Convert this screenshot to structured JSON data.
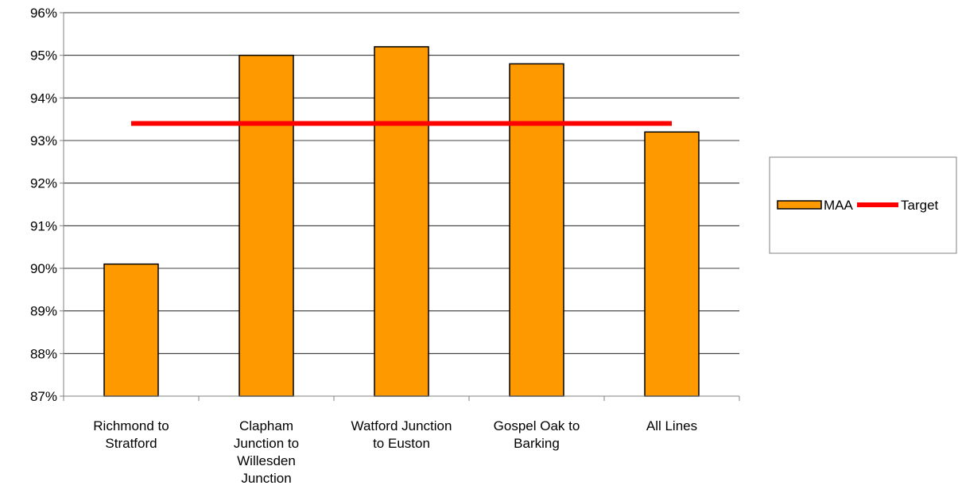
{
  "chart_data": {
    "type": "bar",
    "categories": [
      [
        "Richmond to",
        "Stratford"
      ],
      [
        "Clapham",
        "Junction to",
        "Willesden",
        "Junction"
      ],
      [
        "Watford Junction",
        "to Euston"
      ],
      [
        "Gospel Oak to",
        "Barking"
      ],
      [
        "All Lines"
      ]
    ],
    "series": [
      {
        "name": "MAA",
        "type": "bar",
        "values": [
          90.1,
          95.0,
          95.2,
          94.8,
          93.2
        ],
        "color": "#FF9900"
      },
      {
        "name": "Target",
        "type": "line",
        "values": [
          93.4,
          93.4,
          93.4,
          93.4,
          93.4
        ],
        "color": "#FF0000"
      }
    ],
    "ylim": [
      87,
      96
    ],
    "yticks": [
      87,
      88,
      89,
      90,
      91,
      92,
      93,
      94,
      95,
      96
    ],
    "ytick_suffix": "%",
    "grid": true,
    "legend": "right"
  }
}
